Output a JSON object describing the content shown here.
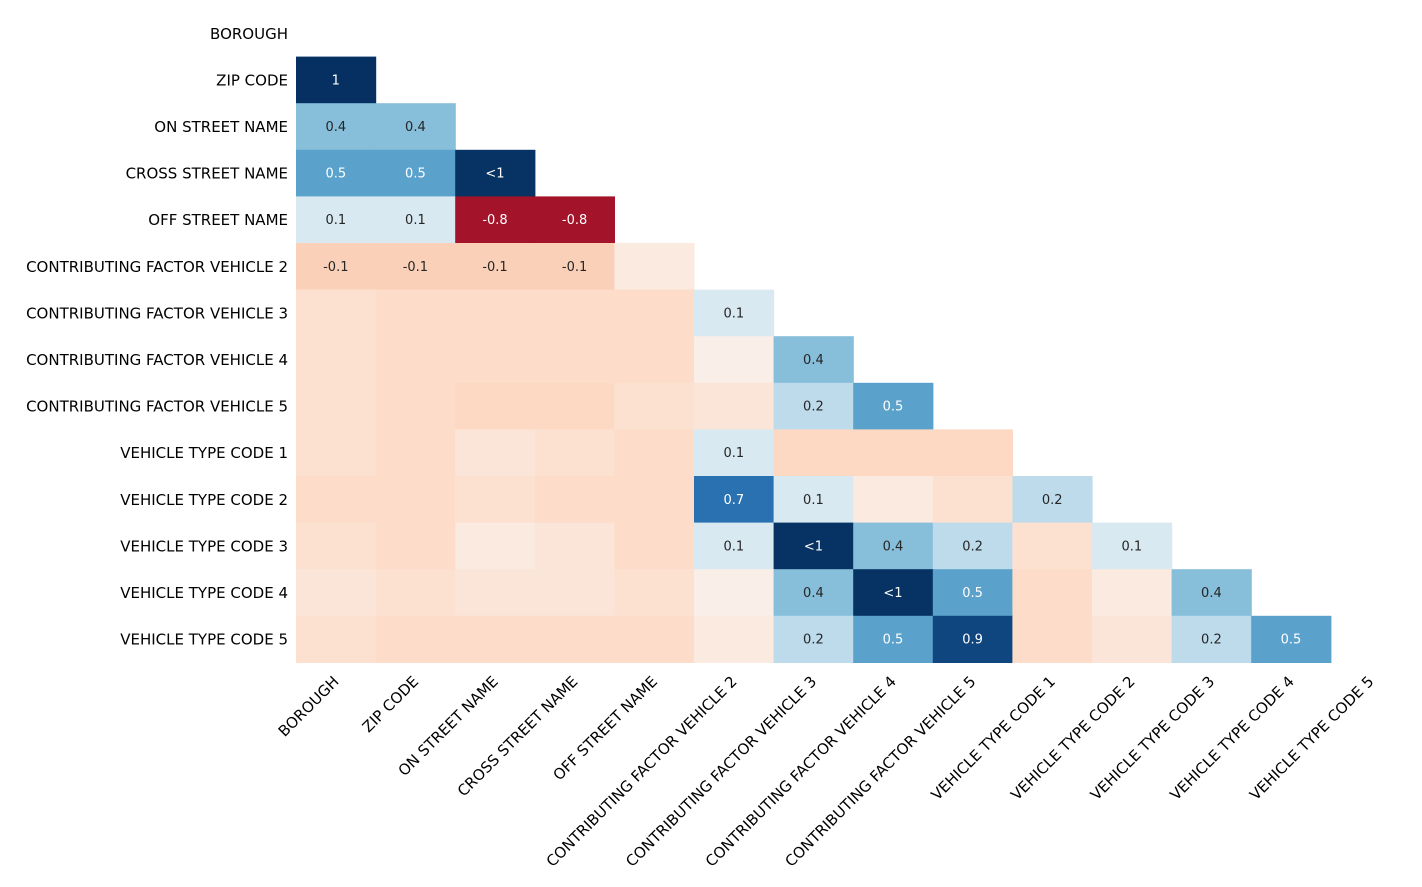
{
  "chart_data": {
    "type": "heatmap",
    "title": "",
    "labels": [
      "BOROUGH",
      "ZIP CODE",
      "ON STREET NAME",
      "CROSS STREET NAME",
      "OFF STREET NAME",
      "CONTRIBUTING FACTOR VEHICLE 2",
      "CONTRIBUTING FACTOR VEHICLE 3",
      "CONTRIBUTING FACTOR VEHICLE 4",
      "CONTRIBUTING FACTOR VEHICLE 5",
      "VEHICLE TYPE CODE 1",
      "VEHICLE TYPE CODE 2",
      "VEHICLE TYPE CODE 3",
      "VEHICLE TYPE CODE 4",
      "VEHICLE TYPE CODE 5"
    ],
    "values": [
      [],
      [
        1.0
      ],
      [
        0.4,
        0.4
      ],
      [
        0.5,
        0.5,
        0.99
      ],
      [
        0.1,
        0.1,
        -0.8,
        -0.8
      ],
      [
        -0.1,
        -0.1,
        -0.1,
        -0.1,
        -0.03
      ],
      [
        -0.05,
        -0.06,
        -0.06,
        -0.06,
        -0.06,
        0.1
      ],
      [
        -0.05,
        -0.06,
        -0.06,
        -0.06,
        -0.06,
        -0.02,
        0.4
      ],
      [
        -0.05,
        -0.06,
        -0.07,
        -0.07,
        -0.05,
        -0.04,
        0.2,
        0.5
      ],
      [
        -0.05,
        -0.06,
        -0.04,
        -0.05,
        -0.06,
        0.1,
        -0.07,
        -0.07,
        -0.07
      ],
      [
        -0.06,
        -0.06,
        -0.05,
        -0.06,
        -0.06,
        0.7,
        0.1,
        -0.03,
        -0.05,
        0.2
      ],
      [
        -0.05,
        -0.06,
        -0.03,
        -0.04,
        -0.06,
        0.1,
        0.99,
        0.4,
        0.2,
        -0.05,
        0.1
      ],
      [
        -0.04,
        -0.05,
        -0.04,
        -0.04,
        -0.05,
        -0.02,
        0.4,
        0.99,
        0.5,
        -0.06,
        -0.03,
        0.4
      ],
      [
        -0.05,
        -0.06,
        -0.06,
        -0.06,
        -0.06,
        -0.03,
        0.2,
        0.5,
        0.9,
        -0.06,
        -0.04,
        0.2,
        0.5
      ]
    ],
    "cell_labels": [
      [],
      [
        "1"
      ],
      [
        "0.4",
        "0.4"
      ],
      [
        "0.5",
        "0.5",
        "<1"
      ],
      [
        "0.1",
        "0.1",
        "-0.8",
        "-0.8"
      ],
      [
        "-0.1",
        "-0.1",
        "-0.1",
        "-0.1",
        ""
      ],
      [
        "",
        "",
        "",
        "",
        "",
        "0.1"
      ],
      [
        "",
        "",
        "",
        "",
        "",
        "",
        "0.4"
      ],
      [
        "",
        "",
        "",
        "",
        "",
        "",
        "0.2",
        "0.5"
      ],
      [
        "",
        "",
        "",
        "",
        "",
        "0.1",
        "",
        "",
        ""
      ],
      [
        "",
        "",
        "",
        "",
        "",
        "0.7",
        "0.1",
        "",
        "",
        "0.2"
      ],
      [
        "",
        "",
        "",
        "",
        "",
        "0.1",
        "<1",
        "0.4",
        "0.2",
        "",
        "0.1"
      ],
      [
        "",
        "",
        "",
        "",
        "",
        "",
        "0.4",
        "<1",
        "0.5",
        "",
        "",
        "0.4"
      ],
      [
        "",
        "",
        "",
        "",
        "",
        "",
        "0.2",
        "0.5",
        "0.9",
        "",
        "",
        "0.2",
        "0.5"
      ]
    ],
    "vmin": -1,
    "vmax": 1,
    "colormap": "RdBu",
    "mask": "upper-triangle",
    "legend": "none"
  }
}
